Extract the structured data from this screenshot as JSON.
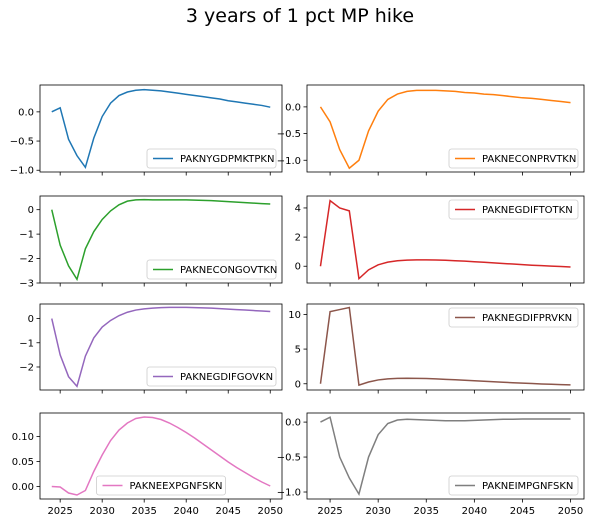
{
  "figure": {
    "title": "3 years of 1 pct MP hike",
    "xticks": [
      2025,
      2030,
      2035,
      2040,
      2045,
      2050
    ],
    "xlim": [
      2022.6,
      2051.4
    ]
  },
  "chart_data": [
    {
      "type": "line",
      "series": [
        {
          "name": "PAKNYGDPMKTPKN",
          "color": "#1f77b4",
          "x": [
            2024,
            2025,
            2026,
            2027,
            2028,
            2029,
            2030,
            2031,
            2032,
            2033,
            2034,
            2035,
            2036,
            2037,
            2038,
            2039,
            2040,
            2041,
            2042,
            2043,
            2044,
            2045,
            2046,
            2047,
            2048,
            2049,
            2050
          ],
          "y": [
            0.0,
            0.07,
            -0.47,
            -0.75,
            -0.95,
            -0.45,
            -0.08,
            0.15,
            0.28,
            0.34,
            0.37,
            0.38,
            0.37,
            0.36,
            0.34,
            0.32,
            0.3,
            0.28,
            0.26,
            0.24,
            0.22,
            0.19,
            0.17,
            0.15,
            0.13,
            0.11,
            0.08
          ]
        }
      ],
      "ylim": [
        -1.03,
        0.46
      ],
      "yticks": [
        -1.0,
        -0.5,
        0.0
      ],
      "ytick_labels": [
        "−1.0",
        "−0.5",
        "0.0"
      ],
      "legend": "lower-right"
    },
    {
      "type": "line",
      "series": [
        {
          "name": "PAKNECONPRVTKN",
          "color": "#ff7f0e",
          "x": [
            2024,
            2025,
            2026,
            2027,
            2028,
            2029,
            2030,
            2031,
            2032,
            2033,
            2034,
            2035,
            2036,
            2037,
            2038,
            2039,
            2040,
            2041,
            2042,
            2043,
            2044,
            2045,
            2046,
            2047,
            2048,
            2049,
            2050
          ],
          "y": [
            0.0,
            -0.28,
            -0.8,
            -1.15,
            -1.0,
            -0.45,
            -0.08,
            0.14,
            0.24,
            0.29,
            0.31,
            0.31,
            0.31,
            0.3,
            0.29,
            0.27,
            0.26,
            0.24,
            0.23,
            0.21,
            0.19,
            0.17,
            0.16,
            0.14,
            0.12,
            0.1,
            0.08
          ]
        }
      ],
      "ylim": [
        -1.22,
        0.41
      ],
      "yticks": [
        -1.0,
        -0.5,
        0.0
      ],
      "ytick_labels": [
        "−1.0",
        "−0.5",
        "0.0"
      ],
      "legend": "lower-right"
    },
    {
      "type": "line",
      "series": [
        {
          "name": "PAKNECONGOVTKN",
          "color": "#2ca02c",
          "x": [
            2024,
            2025,
            2026,
            2027,
            2028,
            2029,
            2030,
            2031,
            2032,
            2033,
            2034,
            2035,
            2036,
            2037,
            2038,
            2039,
            2040,
            2041,
            2042,
            2043,
            2044,
            2045,
            2046,
            2047,
            2048,
            2049,
            2050
          ],
          "y": [
            0.0,
            -1.45,
            -2.3,
            -2.85,
            -1.6,
            -0.9,
            -0.4,
            -0.05,
            0.2,
            0.35,
            0.4,
            0.41,
            0.4,
            0.4,
            0.4,
            0.4,
            0.4,
            0.39,
            0.38,
            0.37,
            0.35,
            0.33,
            0.31,
            0.29,
            0.27,
            0.25,
            0.23
          ]
        }
      ],
      "ylim": [
        -3.0,
        0.56
      ],
      "yticks": [
        -3,
        -2,
        -1,
        0
      ],
      "ytick_labels": [
        "−3",
        "−2",
        "−1",
        "0"
      ],
      "legend": "lower-right"
    },
    {
      "type": "line",
      "series": [
        {
          "name": "PAKNEGDIFTOTKN",
          "color": "#d62728",
          "x": [
            2024,
            2025,
            2026,
            2027,
            2028,
            2029,
            2030,
            2031,
            2032,
            2033,
            2034,
            2035,
            2036,
            2037,
            2038,
            2039,
            2040,
            2041,
            2042,
            2043,
            2044,
            2045,
            2046,
            2047,
            2048,
            2049,
            2050
          ],
          "y": [
            0.0,
            4.5,
            4.0,
            3.8,
            -0.85,
            -0.25,
            0.1,
            0.28,
            0.38,
            0.42,
            0.44,
            0.44,
            0.43,
            0.41,
            0.38,
            0.35,
            0.31,
            0.27,
            0.23,
            0.19,
            0.15,
            0.11,
            0.07,
            0.04,
            0.01,
            -0.02,
            -0.05
          ]
        }
      ],
      "ylim": [
        -1.15,
        4.82
      ],
      "yticks": [
        0,
        2,
        4
      ],
      "ytick_labels": [
        "0",
        "2",
        "4"
      ],
      "legend": "upper-right"
    },
    {
      "type": "line",
      "series": [
        {
          "name": "PAKNEGDIFGOVKN",
          "color": "#9467bd",
          "x": [
            2024,
            2025,
            2026,
            2027,
            2028,
            2029,
            2030,
            2031,
            2032,
            2033,
            2034,
            2035,
            2036,
            2037,
            2038,
            2039,
            2040,
            2041,
            2042,
            2043,
            2044,
            2045,
            2046,
            2047,
            2048,
            2049,
            2050
          ],
          "y": [
            0.0,
            -1.5,
            -2.4,
            -2.8,
            -1.55,
            -0.8,
            -0.35,
            -0.08,
            0.12,
            0.26,
            0.35,
            0.4,
            0.43,
            0.45,
            0.46,
            0.46,
            0.46,
            0.45,
            0.44,
            0.43,
            0.41,
            0.39,
            0.37,
            0.35,
            0.33,
            0.31,
            0.29
          ]
        }
      ],
      "ylim": [
        -2.95,
        0.6
      ],
      "yticks": [
        -2,
        -1,
        0
      ],
      "ytick_labels": [
        "−2",
        "−1",
        "0"
      ],
      "legend": "lower-right"
    },
    {
      "type": "line",
      "series": [
        {
          "name": "PAKNEGDIFPRVKN",
          "color": "#8c564b",
          "x": [
            2024,
            2025,
            2026,
            2027,
            2028,
            2029,
            2030,
            2031,
            2032,
            2033,
            2034,
            2035,
            2036,
            2037,
            2038,
            2039,
            2040,
            2041,
            2042,
            2043,
            2044,
            2045,
            2046,
            2047,
            2048,
            2049,
            2050
          ],
          "y": [
            0.0,
            10.4,
            10.7,
            11.0,
            -0.2,
            0.25,
            0.55,
            0.7,
            0.78,
            0.8,
            0.78,
            0.75,
            0.7,
            0.64,
            0.57,
            0.5,
            0.43,
            0.36,
            0.29,
            0.22,
            0.15,
            0.09,
            0.03,
            -0.03,
            -0.08,
            -0.12,
            -0.16
          ]
        }
      ],
      "ylim": [
        -0.9,
        11.5
      ],
      "yticks": [
        0,
        5,
        10
      ],
      "ytick_labels": [
        "0",
        "5",
        "10"
      ],
      "legend": "upper-right"
    },
    {
      "type": "line",
      "series": [
        {
          "name": "PAKNEEXPGNFSKN",
          "color": "#e377c2",
          "x": [
            2024,
            2025,
            2026,
            2027,
            2028,
            2029,
            2030,
            2031,
            2032,
            2033,
            2034,
            2035,
            2036,
            2037,
            2038,
            2039,
            2040,
            2041,
            2042,
            2043,
            2044,
            2045,
            2046,
            2047,
            2048,
            2049,
            2050
          ],
          "y": [
            0.0,
            -0.001,
            -0.013,
            -0.017,
            -0.008,
            0.03,
            0.063,
            0.092,
            0.113,
            0.127,
            0.136,
            0.139,
            0.138,
            0.134,
            0.127,
            0.118,
            0.108,
            0.097,
            0.085,
            0.073,
            0.061,
            0.049,
            0.038,
            0.028,
            0.018,
            0.009,
            0.001
          ]
        }
      ],
      "ylim": [
        -0.025,
        0.147
      ],
      "yticks": [
        0.0,
        0.05,
        0.1
      ],
      "ytick_labels": [
        "0.00",
        "0.05",
        "0.10"
      ],
      "legend": "lower-center"
    },
    {
      "type": "line",
      "series": [
        {
          "name": "PAKNEIMPGNFSKN",
          "color": "#7f7f7f",
          "x": [
            2024,
            2025,
            2026,
            2027,
            2028,
            2029,
            2030,
            2031,
            2032,
            2033,
            2034,
            2035,
            2036,
            2037,
            2038,
            2039,
            2040,
            2041,
            2042,
            2043,
            2044,
            2045,
            2046,
            2047,
            2048,
            2049,
            2050
          ],
          "y": [
            0.0,
            0.07,
            -0.5,
            -0.8,
            -1.03,
            -0.5,
            -0.18,
            -0.02,
            0.03,
            0.04,
            0.035,
            0.03,
            0.025,
            0.02,
            0.02,
            0.02,
            0.025,
            0.03,
            0.035,
            0.04,
            0.04,
            0.045,
            0.045,
            0.045,
            0.045,
            0.045,
            0.045
          ]
        }
      ],
      "ylim": [
        -1.1,
        0.13
      ],
      "yticks": [
        -1.0,
        -0.5,
        0.0
      ],
      "ytick_labels": [
        "−1.0",
        "−0.5",
        "0.0"
      ],
      "legend": "lower-right"
    }
  ]
}
